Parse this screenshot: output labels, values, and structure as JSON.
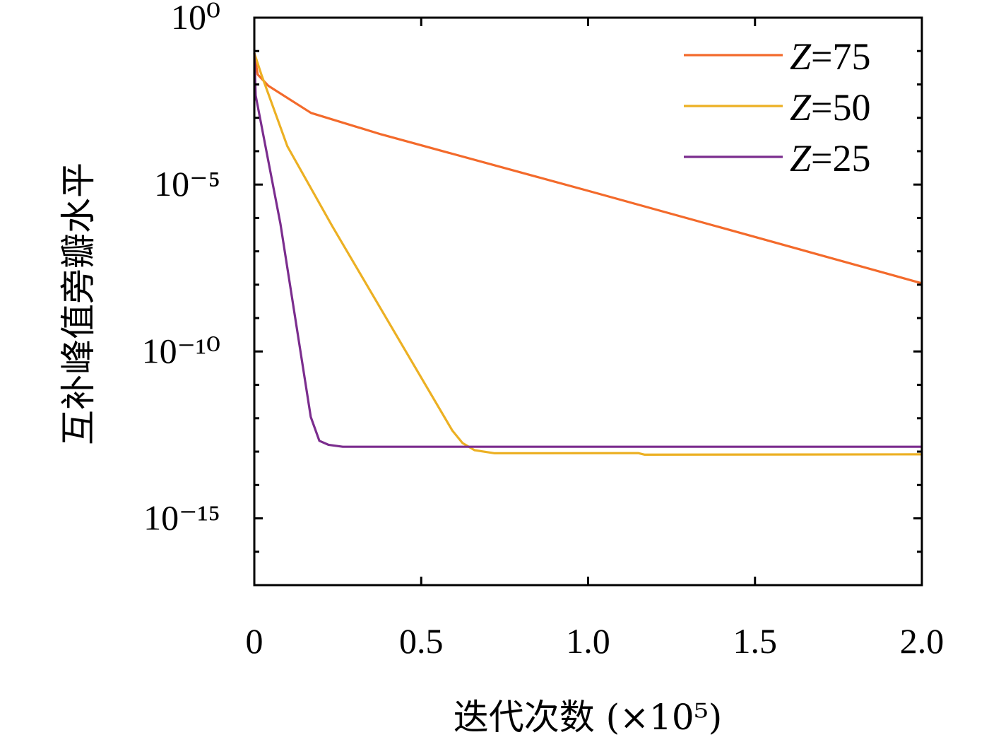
{
  "chart_data": {
    "type": "line",
    "title": "",
    "xlabel": "迭代次数 (×10⁵)",
    "ylabel": "互补峰值旁瓣水平",
    "xlim": [
      0,
      2.0
    ],
    "ylim": [
      1e-17,
      1
    ],
    "yscale": "log",
    "grid": false,
    "legend_position": "top-right",
    "xticks": [
      {
        "value": 0,
        "label": "0"
      },
      {
        "value": 0.5,
        "label": "0.5"
      },
      {
        "value": 1.0,
        "label": "1.0"
      },
      {
        "value": 1.5,
        "label": "1.5"
      },
      {
        "value": 2.0,
        "label": "2.0"
      }
    ],
    "yticks": [
      {
        "value": 1,
        "label": "10⁰"
      },
      {
        "value": 1e-05,
        "label": "10⁻⁵"
      },
      {
        "value": 1e-10,
        "label": "10⁻¹⁰"
      },
      {
        "value": 1e-15,
        "label": "10⁻¹⁵"
      }
    ],
    "series": [
      {
        "name": "Z=75",
        "color": "#f36a2b",
        "x": [
          0,
          0.01,
          0.042,
          0.17,
          0.38,
          1.0,
          1.5,
          2.0
        ],
        "y": [
          0.087,
          0.02,
          0.0091,
          0.0014,
          0.00032,
          6.5e-06,
          2.7e-07,
          1.1e-08
        ]
      },
      {
        "name": "Z=50",
        "color": "#ecb023",
        "x": [
          0,
          0.021,
          0.099,
          0.233,
          0.593,
          0.624,
          0.66,
          0.72,
          1.15,
          1.17,
          2.0
        ],
        "y": [
          0.087,
          0.02,
          0.00014,
          5.8e-07,
          4.3e-13,
          1.8e-13,
          1.1e-13,
          8.9e-14,
          9e-14,
          8.1e-14,
          8.3e-14
        ]
      },
      {
        "name": "Z=25",
        "color": "#7b2d8e",
        "x": [
          0,
          0.004,
          0.078,
          0.169,
          0.195,
          0.222,
          0.265,
          2.0
        ],
        "y": [
          0.087,
          0.0047,
          6.8e-07,
          1.1e-12,
          2.1e-13,
          1.6e-13,
          1.4e-13,
          1.4e-13
        ]
      }
    ]
  }
}
